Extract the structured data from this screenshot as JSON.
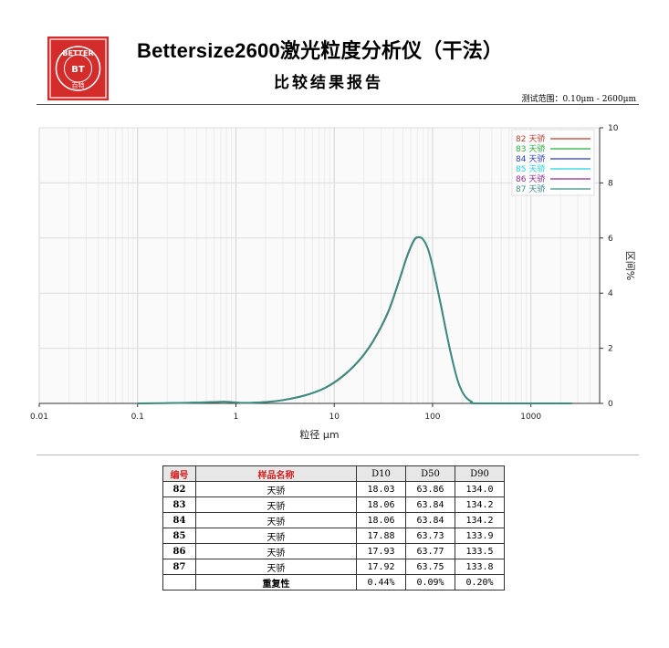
{
  "header": {
    "logo_text_top": "BETTER",
    "logo_text_mid": "BT",
    "logo_text_bottom": "百特",
    "title": "Bettersize2600激光粒度分析仪（干法）",
    "subtitle": "比较结果报告",
    "range_label": "测试范围：0.10μm - 2600μm"
  },
  "colors": {
    "logo_red": "#d42b2b",
    "table_header_red": "#d42020"
  },
  "chart_data": {
    "type": "line",
    "x_scale": "log",
    "xlim": [
      0.01,
      5000
    ],
    "ylim": [
      0,
      10
    ],
    "x_ticks": [
      0.01,
      0.1,
      1,
      10,
      100,
      1000
    ],
    "x_tick_labels": [
      "0.01",
      "0.1",
      "1",
      "10",
      "100",
      "1000"
    ],
    "y_ticks": [
      0,
      2,
      4,
      6,
      8,
      10
    ],
    "y_tick_labels": [
      "0",
      "2",
      "4",
      "6",
      "8",
      "10"
    ],
    "xlabel": "粒径 μm",
    "ylabel": "区间%",
    "grid": true,
    "legend_position": "top-right",
    "series": [
      {
        "name": "82 天骄",
        "color": "#c0392b",
        "x": [
          0.1,
          0.3,
          0.6,
          0.8,
          1.2,
          2,
          3,
          5,
          8,
          12,
          18,
          25,
          35,
          45,
          55,
          65,
          72,
          80,
          90,
          100,
          120,
          150,
          180,
          210,
          250,
          300,
          2600
        ],
        "y": [
          0,
          0.02,
          0.05,
          0.06,
          0.02,
          0.05,
          0.12,
          0.28,
          0.55,
          0.95,
          1.55,
          2.25,
          3.25,
          4.35,
          5.3,
          5.9,
          6.02,
          5.95,
          5.6,
          5.0,
          3.7,
          2.0,
          0.85,
          0.3,
          0.06,
          0,
          0
        ]
      },
      {
        "name": "83 天骄",
        "color": "#27ae3a",
        "x": [
          0.1,
          0.3,
          0.6,
          0.8,
          1.2,
          2,
          3,
          5,
          8,
          12,
          18,
          25,
          35,
          45,
          55,
          65,
          72,
          80,
          90,
          100,
          120,
          150,
          180,
          210,
          250,
          300,
          2600
        ],
        "y": [
          0,
          0.02,
          0.05,
          0.06,
          0.02,
          0.05,
          0.12,
          0.28,
          0.55,
          0.96,
          1.56,
          2.27,
          3.27,
          4.37,
          5.32,
          5.92,
          6.03,
          5.96,
          5.6,
          5.0,
          3.68,
          1.98,
          0.84,
          0.3,
          0.06,
          0,
          0
        ]
      },
      {
        "name": "84 天骄",
        "color": "#2c3cc0",
        "x": [
          0.1,
          0.3,
          0.6,
          0.8,
          1.2,
          2,
          3,
          5,
          8,
          12,
          18,
          25,
          35,
          45,
          55,
          65,
          72,
          80,
          90,
          100,
          120,
          150,
          180,
          210,
          250,
          300,
          2600
        ],
        "y": [
          0,
          0.02,
          0.05,
          0.06,
          0.02,
          0.05,
          0.12,
          0.28,
          0.55,
          0.96,
          1.56,
          2.27,
          3.27,
          4.37,
          5.32,
          5.92,
          6.03,
          5.96,
          5.6,
          5.0,
          3.68,
          1.98,
          0.84,
          0.3,
          0.06,
          0,
          0
        ]
      },
      {
        "name": "85 天骄",
        "color": "#1fd3e0",
        "x": [
          0.1,
          0.3,
          0.6,
          0.8,
          1.2,
          2,
          3,
          5,
          8,
          12,
          18,
          25,
          35,
          45,
          55,
          65,
          72,
          80,
          90,
          100,
          120,
          150,
          180,
          210,
          250,
          300,
          2600
        ],
        "y": [
          0,
          0.02,
          0.05,
          0.06,
          0.02,
          0.05,
          0.12,
          0.29,
          0.56,
          0.97,
          1.58,
          2.29,
          3.3,
          4.4,
          5.35,
          5.94,
          6.04,
          5.95,
          5.58,
          4.97,
          3.64,
          1.95,
          0.83,
          0.3,
          0.06,
          0,
          0
        ]
      },
      {
        "name": "86 天骄",
        "color": "#8e2a8a",
        "x": [
          0.1,
          0.3,
          0.6,
          0.8,
          1.2,
          2,
          3,
          5,
          8,
          12,
          18,
          25,
          35,
          45,
          55,
          65,
          72,
          80,
          90,
          100,
          120,
          150,
          180,
          210,
          250,
          300,
          2600
        ],
        "y": [
          0,
          0.02,
          0.05,
          0.06,
          0.02,
          0.05,
          0.12,
          0.29,
          0.56,
          0.97,
          1.57,
          2.28,
          3.28,
          4.38,
          5.33,
          5.93,
          6.03,
          5.95,
          5.59,
          4.98,
          3.66,
          1.96,
          0.83,
          0.3,
          0.06,
          0,
          0
        ]
      },
      {
        "name": "87 天骄",
        "color": "#3d8c80",
        "x": [
          0.1,
          0.3,
          0.6,
          0.8,
          1.2,
          2,
          3,
          5,
          8,
          12,
          18,
          25,
          35,
          45,
          55,
          65,
          72,
          80,
          90,
          100,
          120,
          150,
          180,
          210,
          250,
          300,
          2600
        ],
        "y": [
          0,
          0.02,
          0.05,
          0.06,
          0.02,
          0.05,
          0.12,
          0.29,
          0.56,
          0.97,
          1.57,
          2.28,
          3.29,
          4.39,
          5.34,
          5.93,
          6.03,
          5.95,
          5.59,
          4.98,
          3.65,
          1.96,
          0.83,
          0.3,
          0.06,
          0,
          0
        ]
      }
    ]
  },
  "results_table": {
    "headers": [
      "编号",
      "样品名称",
      "D10",
      "D50",
      "D90"
    ],
    "rows": [
      {
        "code": "82",
        "name": "天骄",
        "d10": "18.03",
        "d50": "63.86",
        "d90": "134.0"
      },
      {
        "code": "83",
        "name": "天骄",
        "d10": "18.06",
        "d50": "63.84",
        "d90": "134.2"
      },
      {
        "code": "84",
        "name": "天骄",
        "d10": "18.06",
        "d50": "63.84",
        "d90": "134.2"
      },
      {
        "code": "85",
        "name": "天骄",
        "d10": "17.88",
        "d50": "63.73",
        "d90": "133.9"
      },
      {
        "code": "86",
        "name": "天骄",
        "d10": "17.93",
        "d50": "63.77",
        "d90": "133.5"
      },
      {
        "code": "87",
        "name": "天骄",
        "d10": "17.92",
        "d50": "63.75",
        "d90": "133.8"
      }
    ],
    "repeatability": {
      "label": "重复性",
      "d10": "0.44%",
      "d50": "0.09%",
      "d90": "0.20%"
    }
  }
}
